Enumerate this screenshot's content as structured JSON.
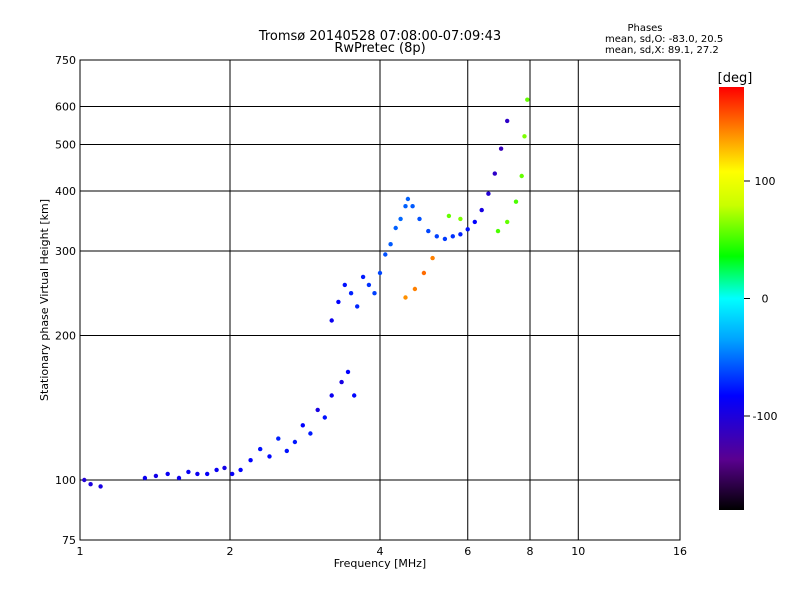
{
  "chart_data": {
    "type": "scatter",
    "title": "Tromsø 20140528 07:08:00-07:09:43",
    "subtitle": "RwPretec (8p)",
    "xlabel": "Frequency [MHz]",
    "ylabel": "Stationary phase Virtual Height [km]",
    "x_scale": "log",
    "y_scale": "log",
    "xlim": [
      1,
      16
    ],
    "ylim": [
      75,
      750
    ],
    "x_ticks": [
      1,
      2,
      4,
      6,
      8,
      10,
      16
    ],
    "y_ticks": [
      75,
      100,
      200,
      300,
      400,
      500,
      600,
      750
    ],
    "grid": true,
    "stats": {
      "heading": "Phases",
      "line_o": "mean, sd,O: -83.0, 20.5",
      "line_x": "mean, sd,X:  89.1, 27.2"
    },
    "colorbar": {
      "label": "[deg]",
      "range": [
        -180,
        180
      ],
      "ticks": [
        100,
        0,
        -100
      ]
    },
    "series": [
      {
        "x": [
          1.02,
          1.05,
          1.1,
          1.35,
          1.42,
          1.5,
          1.58,
          1.65,
          1.72,
          1.8,
          1.88,
          1.95,
          2.02,
          2.1
        ],
        "y": [
          100,
          98,
          97,
          101,
          102,
          103,
          101,
          104,
          103,
          103,
          105,
          106,
          103,
          105
        ],
        "phase": [
          -115,
          -112,
          -110,
          -105,
          -108,
          -104,
          -106,
          -103,
          -105,
          -102,
          -104,
          -108,
          -103,
          -100
        ]
      },
      {
        "x": [
          2.2,
          2.3,
          2.4,
          2.5,
          2.6,
          2.7,
          2.8,
          2.9,
          3.0,
          3.1,
          3.2,
          3.35,
          3.45,
          3.55
        ],
        "y": [
          110,
          116,
          112,
          122,
          115,
          120,
          130,
          125,
          140,
          135,
          150,
          160,
          168,
          150
        ],
        "phase": [
          -100,
          -95,
          -98,
          -90,
          -95,
          -93,
          -100,
          -92,
          -110,
          -95,
          -105,
          -110,
          -100,
          -98
        ]
      },
      {
        "x": [
          3.2,
          3.3,
          3.4,
          3.5,
          3.6,
          3.7,
          3.8,
          3.9,
          4.0,
          4.1,
          4.2,
          4.3,
          4.4,
          4.5
        ],
        "y": [
          215,
          235,
          255,
          245,
          230,
          265,
          255,
          245,
          270,
          295,
          310,
          335,
          350,
          372
        ],
        "phase": [
          -105,
          -100,
          -95,
          -90,
          -88,
          -92,
          -85,
          -80,
          -78,
          -75,
          -72,
          -70,
          -68,
          -70
        ]
      },
      {
        "x": [
          4.55,
          4.65,
          4.8,
          5.0,
          5.2,
          5.4,
          5.6,
          5.8,
          6.0,
          6.2,
          6.4,
          6.6,
          6.8,
          7.0,
          7.2
        ],
        "y": [
          385,
          372,
          350,
          330,
          322,
          318,
          322,
          325,
          333,
          345,
          365,
          395,
          435,
          490,
          560
        ],
        "phase": [
          -70,
          -72,
          -75,
          -78,
          -80,
          -82,
          -85,
          -90,
          -95,
          -100,
          -110,
          -115,
          -120,
          -125,
          -120
        ]
      },
      {
        "x": [
          4.5,
          4.7,
          4.9,
          5.1,
          5.5,
          5.8,
          6.9,
          7.2,
          7.5,
          7.7,
          7.8,
          7.9
        ],
        "y": [
          240,
          250,
          270,
          290,
          355,
          350,
          330,
          345,
          380,
          430,
          520,
          620
        ],
        "phase": [
          145,
          150,
          155,
          150,
          60,
          65,
          55,
          60,
          55,
          60,
          65,
          60
        ]
      }
    ]
  }
}
